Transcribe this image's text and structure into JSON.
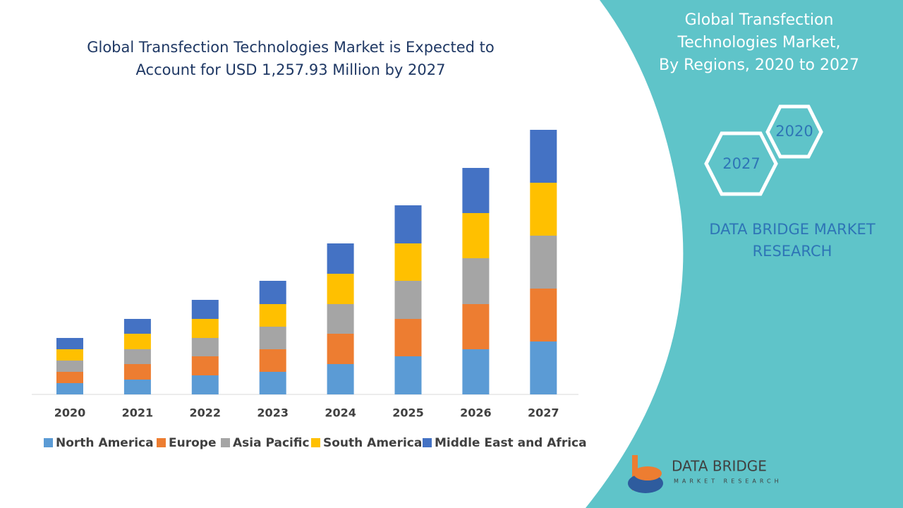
{
  "chart_data": {
    "type": "bar",
    "stacked": true,
    "title": [
      "Global Transfection Technologies Market is Expected to",
      "Account for USD 1,257.93 Million by 2027"
    ],
    "categories": [
      "2020",
      "2021",
      "2022",
      "2023",
      "2024",
      "2025",
      "2026",
      "2027"
    ],
    "series": [
      {
        "name": "North America",
        "color": "#5b9bd5",
        "values": [
          16,
          21,
          27,
          32,
          43,
          54,
          64,
          75
        ]
      },
      {
        "name": "Europe",
        "color": "#ed7d31",
        "values": [
          16,
          22,
          27,
          32,
          43,
          53,
          64,
          75
        ]
      },
      {
        "name": "Asia Pacific",
        "color": "#a5a5a5",
        "values": [
          16,
          21,
          26,
          32,
          42,
          54,
          65,
          75
        ]
      },
      {
        "name": "South America",
        "color": "#ffc000",
        "values": [
          16,
          22,
          27,
          32,
          43,
          53,
          64,
          75
        ]
      },
      {
        "name": "Middle East and Africa",
        "color": "#4472c4",
        "values": [
          16,
          21,
          27,
          33,
          43,
          54,
          64,
          75
        ]
      }
    ]
  },
  "side_panel": {
    "title": [
      "Global Transfection",
      "Technologies Market,",
      "By Regions, 2020 to 2027"
    ],
    "hexagons": [
      "2020",
      "2027"
    ],
    "brand": [
      "DATA BRIDGE MARKET",
      "RESEARCH"
    ]
  },
  "logo": {
    "name": "DATA BRIDGE",
    "tagline": "MARKET RESEARCH"
  }
}
